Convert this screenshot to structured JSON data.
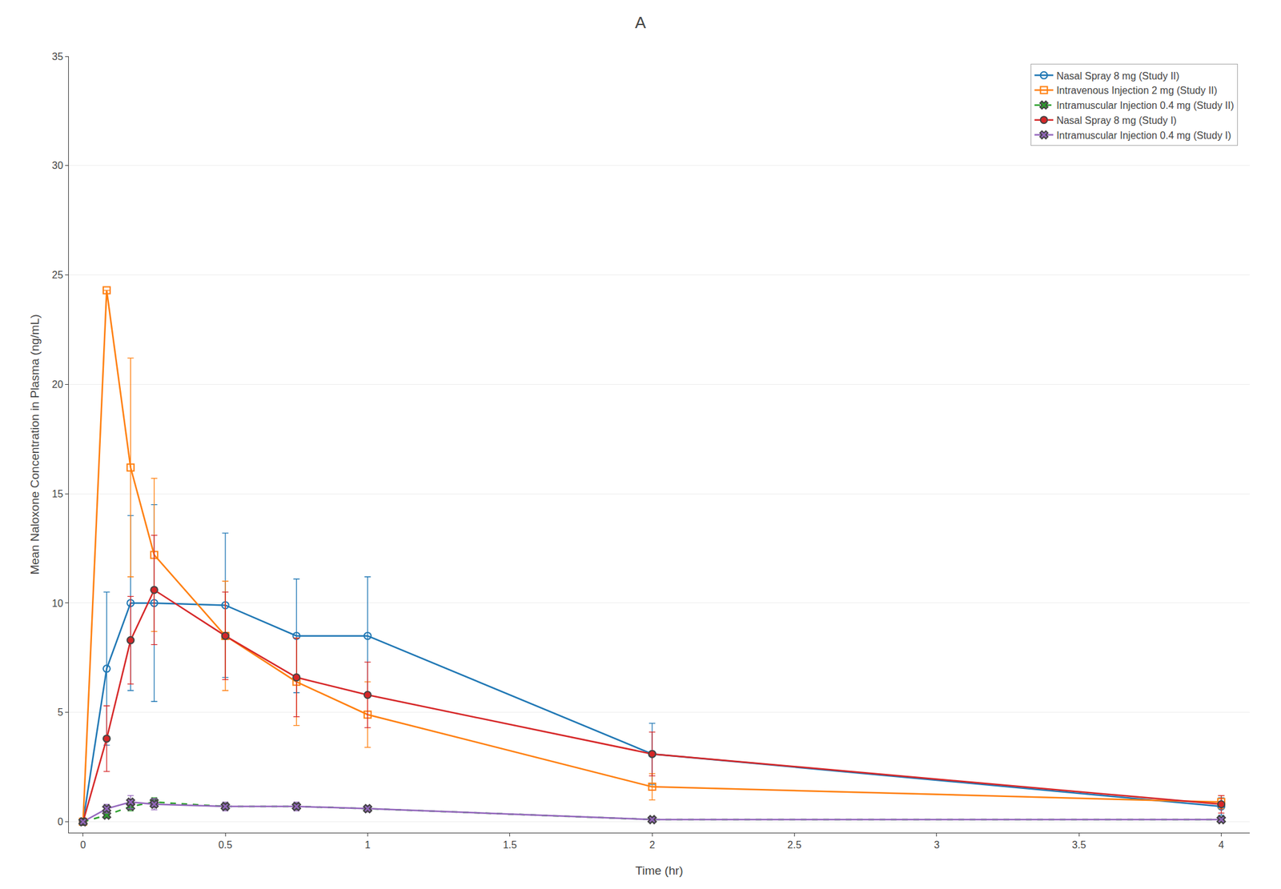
{
  "chart_data": {
    "type": "line",
    "title": "A",
    "xlabel": "Time (hr)",
    "ylabel": "Mean Naloxone Concentration in Plasma (ng/mL)",
    "x": [
      0.0,
      0.083,
      0.167,
      0.25,
      0.5,
      0.75,
      1.0,
      2.0,
      4.0
    ],
    "series": [
      {
        "name": "Nasal Spray 8 mg (Study II)",
        "marker": "circle-open",
        "line_style": "solid",
        "values": [
          0.0,
          7.0,
          10.0,
          10.0,
          9.9,
          8.5,
          8.5,
          3.1,
          0.7
        ],
        "yerr": [
          0.0,
          3.5,
          4.0,
          4.5,
          3.3,
          2.6,
          2.7,
          1.4,
          0.4
        ]
      },
      {
        "name": "Intravenous Injection 2 mg (Study II)",
        "marker": "square-open",
        "line_style": "solid",
        "values": [
          0.0,
          24.3,
          16.2,
          12.2,
          8.5,
          6.4,
          4.9,
          1.6,
          0.9
        ],
        "yerr": [
          0.0,
          0.0,
          5.0,
          3.5,
          2.5,
          2.0,
          1.5,
          0.6,
          0.3
        ]
      },
      {
        "name": "Intramuscular Injection 0.4 mg (Study II)",
        "marker": "x",
        "line_style": "dash",
        "values": [
          0.0,
          0.3,
          0.7,
          0.9,
          0.7,
          0.7,
          0.6,
          0.1,
          0.1
        ],
        "yerr": [
          0.0,
          0.1,
          0.2,
          0.2,
          0.15,
          0.15,
          0.12,
          0.05,
          0.05
        ]
      },
      {
        "name": "Nasal Spray 8 mg (Study I)",
        "marker": "circle",
        "line_style": "solid",
        "values": [
          0.0,
          3.8,
          8.3,
          10.6,
          8.5,
          6.6,
          5.8,
          3.1,
          0.8
        ],
        "yerr": [
          0.0,
          1.5,
          2.0,
          2.5,
          2.0,
          1.8,
          1.5,
          1.0,
          0.4
        ]
      },
      {
        "name": "Intramuscular Injection 0.4 mg (Study I)",
        "marker": "x",
        "line_style": "solid",
        "values": [
          0.0,
          0.6,
          0.9,
          0.8,
          0.7,
          0.7,
          0.6,
          0.1,
          0.1
        ],
        "yerr": [
          0.0,
          0.2,
          0.3,
          0.25,
          0.2,
          0.2,
          0.15,
          0.05,
          0.05
        ]
      }
    ],
    "xlim": [
      -0.05,
      4.1
    ],
    "xticks": [
      0,
      0.5,
      1,
      1.5,
      2,
      2.5,
      3,
      3.5,
      4
    ],
    "ylim": [
      -0.5,
      35
    ],
    "yticks": [
      0,
      5,
      10,
      15,
      20,
      25,
      30,
      35
    ],
    "grid": "y",
    "legend": "upper right"
  }
}
